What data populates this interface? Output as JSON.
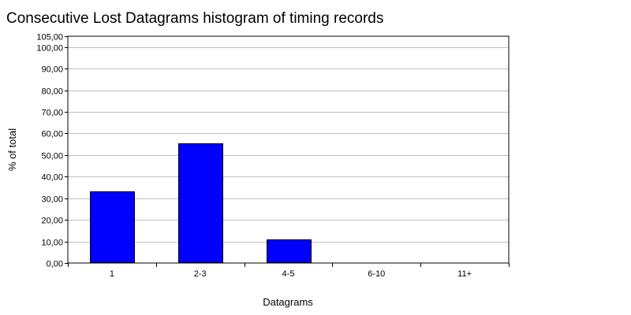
{
  "chart_data": {
    "type": "bar",
    "title": "Consecutive Lost Datagrams histogram of timing records",
    "xlabel": "Datagrams",
    "ylabel": "% of total",
    "categories": [
      "1",
      "2-3",
      "4-5",
      "6-10",
      "11+"
    ],
    "values": [
      33.33,
      55.56,
      11.11,
      0,
      0
    ],
    "ylim": [
      0,
      105
    ],
    "yticks": [
      0,
      10,
      20,
      30,
      40,
      50,
      60,
      70,
      80,
      90,
      100,
      105
    ],
    "ytick_labels": [
      "0,00",
      "10,00",
      "20,00",
      "30,00",
      "40,00",
      "50,00",
      "60,00",
      "70,00",
      "80,00",
      "90,00",
      "100,00",
      "105,00"
    ],
    "grid": true,
    "legend": "none",
    "bar_color": "#0000ff",
    "bar_edge_color": "#000000",
    "grid_color": "#c0c0c0"
  }
}
